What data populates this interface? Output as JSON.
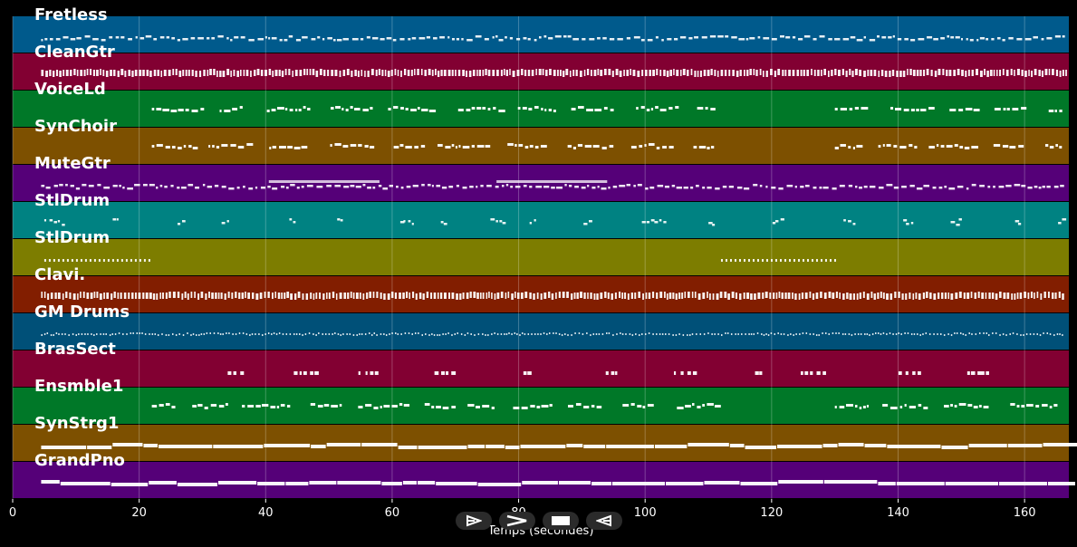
{
  "chart_data": {
    "type": "piano-roll",
    "xlabel": "Temps (secondes)",
    "xlim": [
      0,
      167
    ],
    "x_ticks": [
      "0",
      "20",
      "40",
      "60",
      "80",
      "100",
      "120",
      "140",
      "160"
    ],
    "tracks": [
      {
        "name": "Fretless",
        "color": "#005a8c",
        "density": "dense",
        "active": [
          [
            4.5,
            166.5
          ]
        ]
      },
      {
        "name": "CleanGtr",
        "color": "#820032",
        "density": "block",
        "active": [
          [
            4.5,
            166.5
          ]
        ]
      },
      {
        "name": "VoiceLd",
        "color": "#007828",
        "density": "phrase",
        "active": [
          [
            22,
            111
          ],
          [
            130,
            166
          ]
        ]
      },
      {
        "name": "SynChoir",
        "color": "#7d5000",
        "density": "phrase",
        "active": [
          [
            22,
            111
          ],
          [
            130,
            166
          ]
        ]
      },
      {
        "name": "MuteGtr",
        "color": "#550078",
        "density": "dense",
        "active": [
          [
            4.5,
            166.5
          ]
        ]
      },
      {
        "name": "StlDrum",
        "color": "#008282",
        "density": "sparse",
        "active": [
          [
            5,
            166
          ]
        ]
      },
      {
        "name": "StlDrum",
        "color": "#7d7d00",
        "density": "short",
        "active": [
          [
            5,
            22
          ],
          [
            112,
            130
          ]
        ]
      },
      {
        "name": "Clavi.",
        "color": "#821e00",
        "density": "block",
        "active": [
          [
            4.5,
            166.5
          ]
        ]
      },
      {
        "name": "GM Drums",
        "color": "#005078",
        "density": "fine",
        "active": [
          [
            4.5,
            166.5
          ]
        ]
      },
      {
        "name": "BrasSect",
        "color": "#820032",
        "density": "rare",
        "active": [
          [
            34,
            162
          ]
        ]
      },
      {
        "name": "Ensmble1",
        "color": "#007828",
        "density": "phrase",
        "active": [
          [
            22,
            111
          ],
          [
            130,
            166
          ]
        ]
      },
      {
        "name": "SynStrg1",
        "color": "#7d5000",
        "density": "legato",
        "active": [
          [
            4.5,
            166.5
          ]
        ]
      },
      {
        "name": "GrandPno",
        "color": "#550078",
        "density": "legato",
        "active": [
          [
            4.5,
            166.5
          ]
        ]
      }
    ]
  },
  "controls": {
    "play_forward": "play-forward-icon",
    "fast_forward": "fast-forward-icon",
    "stop": "stop-icon",
    "rewind": "rewind-icon"
  }
}
